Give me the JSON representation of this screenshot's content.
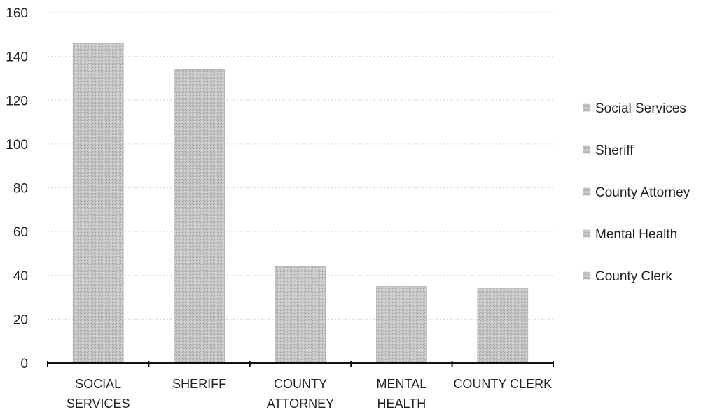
{
  "chart_data": {
    "type": "bar",
    "categories": [
      [
        "SOCIAL",
        "SERVICES"
      ],
      [
        "SHERIFF"
      ],
      [
        "COUNTY",
        "ATTORNEY"
      ],
      [
        "MENTAL",
        "HEALTH"
      ],
      [
        "COUNTY CLERK"
      ]
    ],
    "values": [
      146,
      134,
      44,
      35,
      34
    ],
    "ylim": [
      0,
      160
    ],
    "yticks": [
      0,
      20,
      40,
      60,
      80,
      100,
      120,
      140,
      160
    ],
    "grid": true,
    "legend": {
      "position": "right",
      "entries": [
        "Social Services",
        "Sheriff",
        "County Attorney",
        "Mental Health",
        "County Clerk"
      ]
    },
    "colors": {
      "bar": "#c4c4c4",
      "bar_stroke": "#a9a9a9",
      "axis": "#111111",
      "grid": "#d6d6d6"
    }
  }
}
